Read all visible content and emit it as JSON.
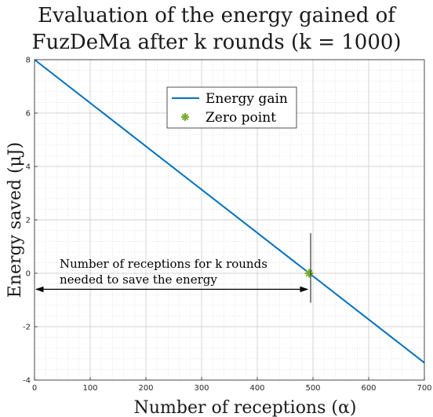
{
  "chart_data": {
    "type": "line",
    "title_lines": [
      "Evaluation of the energy gained of",
      "FuzDeMa after k rounds (k = 1000)"
    ],
    "xlabel": "Number of receptions (α)",
    "ylabel": "Energy saved (μJ)",
    "xlim": [
      0,
      700
    ],
    "ylim": [
      -4,
      8
    ],
    "xticks": [
      0,
      100,
      200,
      300,
      400,
      500,
      600,
      700
    ],
    "yticks": [
      -4,
      -2,
      0,
      2,
      4,
      6,
      8
    ],
    "grid": true,
    "minor_grid": true,
    "legend_position": "top-center",
    "series": [
      {
        "name": "Energy gain",
        "color": "#0072BD",
        "x": [
          0,
          700
        ],
        "y": [
          8.0,
          -3.35
        ]
      },
      {
        "name": "Zero point",
        "color": "#77AC30",
        "marker": "asterisk",
        "x": [
          493
        ],
        "y": [
          0
        ]
      }
    ],
    "annotations": [
      {
        "text_lines": [
          "Number of receptions for k rounds",
          "needed to save the energy"
        ],
        "arrow_from_x": 0,
        "arrow_to_x": 493,
        "arrow_y": -0.6,
        "vline_x": 493,
        "vline_y": [
          -1.1,
          1.5
        ]
      }
    ]
  }
}
